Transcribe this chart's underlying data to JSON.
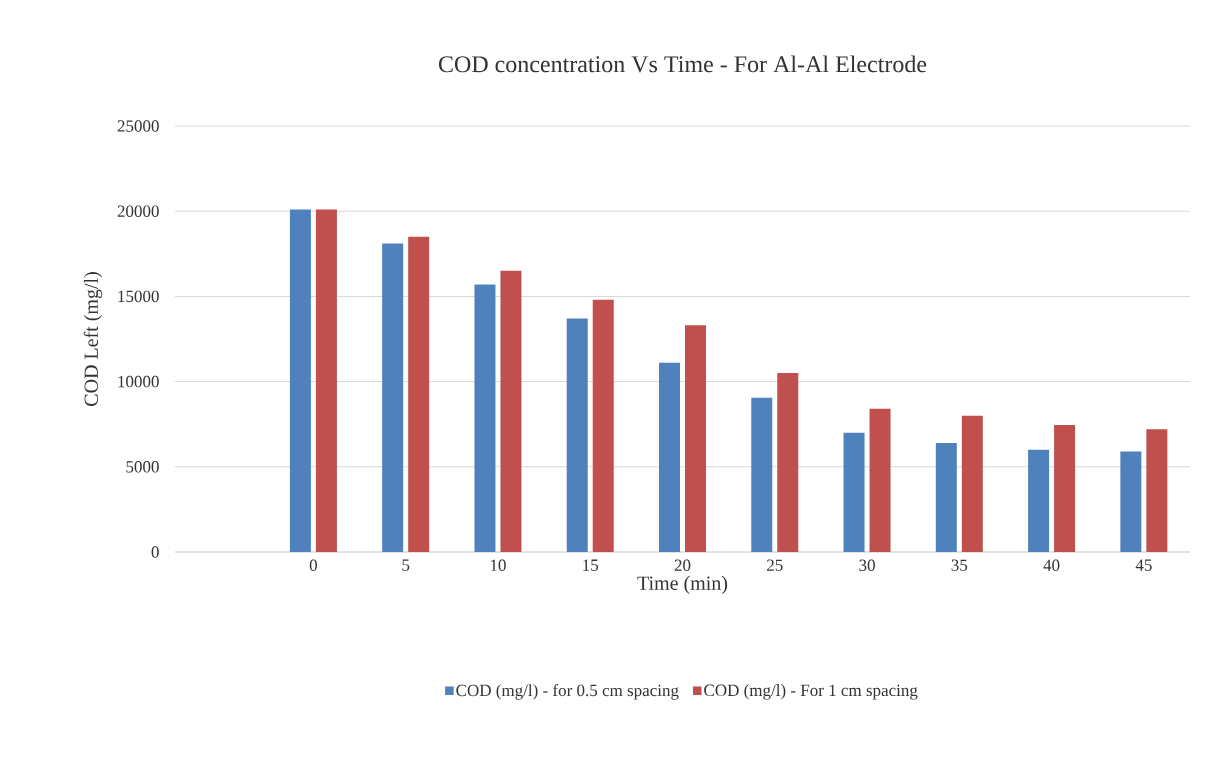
{
  "chart_data": {
    "type": "bar",
    "title": "COD concentration Vs Time - For Al-Al Electrode",
    "xlabel": "Time (min)",
    "ylabel": "COD Left  (mg/l)",
    "categories": [
      null,
      "0",
      "5",
      "10",
      "15",
      "20",
      "25",
      "30",
      "35",
      "40",
      "45"
    ],
    "series": [
      {
        "name": "COD (mg/l) - for 0.5 cm spacing",
        "color": "#4f81bd",
        "values": [
          null,
          20100,
          18100,
          15700,
          13700,
          11100,
          9050,
          7000,
          6400,
          6000,
          5900
        ]
      },
      {
        "name": "COD (mg/l) - For 1 cm spacing",
        "color": "#c0504d",
        "values": [
          null,
          20100,
          18500,
          16500,
          14800,
          13300,
          10500,
          8400,
          8000,
          7450,
          7200
        ]
      }
    ],
    "ylim": [
      0,
      25000
    ],
    "yticks": [
      0,
      5000,
      10000,
      15000,
      20000,
      25000
    ],
    "grid": "y",
    "legend": "bottom"
  }
}
